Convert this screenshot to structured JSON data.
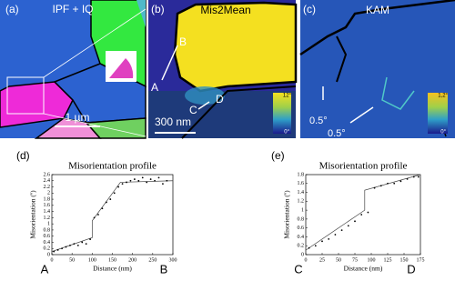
{
  "panels": [
    {
      "label": "(a)",
      "title": "IPF + IQ",
      "scale": "1 µm"
    },
    {
      "label": "(b)",
      "title": "Mis2Mean",
      "points": [
        "B",
        "A",
        "C",
        "D"
      ],
      "scale": "300 nm",
      "colorbar": [
        "12°",
        "0°"
      ]
    },
    {
      "label": "(c)",
      "title": "KAM",
      "annotations": [
        "0.5°",
        "0.5°"
      ],
      "colorbar": [
        "1,2°",
        "0°"
      ]
    }
  ],
  "chart_data": [
    {
      "type": "scatter",
      "panel": "(d)",
      "title": "Misorientation profile",
      "x_label": "Distance (nm)",
      "y_label": "Misorientation (º)",
      "ends": [
        "A",
        "B"
      ],
      "x": [
        5,
        15,
        25,
        35,
        45,
        55,
        65,
        75,
        85,
        95,
        105,
        115,
        125,
        135,
        145,
        155,
        165,
        175,
        185,
        195,
        205,
        215,
        225,
        235,
        245,
        255,
        265,
        275,
        285
      ],
      "values": [
        0.1,
        0.15,
        0.2,
        0.25,
        0.3,
        0.35,
        0.3,
        0.4,
        0.35,
        0.5,
        1.2,
        1.3,
        1.5,
        1.7,
        1.8,
        2.0,
        2.2,
        2.3,
        2.35,
        2.4,
        2.45,
        2.4,
        2.5,
        2.35,
        2.45,
        2.4,
        2.5,
        2.3,
        2.4
      ],
      "fit": {
        "x": [
          0,
          100,
          100,
          170,
          300
        ],
        "values": [
          0.1,
          0.55,
          1.1,
          2.35,
          2.4
        ]
      },
      "xlim": [
        0,
        300
      ],
      "xticks": [
        0,
        50,
        100,
        150,
        200,
        250,
        300
      ],
      "ylim": [
        0,
        2.6
      ],
      "yticks": [
        0,
        0.2,
        0.4,
        0.6,
        0.8,
        1,
        1.2,
        1.4,
        1.6,
        1.8,
        2,
        2.2,
        2.4,
        2.6
      ]
    },
    {
      "type": "scatter",
      "panel": "(e)",
      "title": "Misorientation profile",
      "x_label": "Distance (nm)",
      "y_label": "Misorientation (º)",
      "ends": [
        "C",
        "D"
      ],
      "x": [
        5,
        15,
        25,
        35,
        45,
        55,
        65,
        75,
        85,
        95,
        105,
        115,
        125,
        135,
        145,
        155,
        165,
        172
      ],
      "values": [
        0.15,
        0.2,
        0.3,
        0.35,
        0.45,
        0.55,
        0.65,
        0.75,
        0.9,
        0.95,
        1.5,
        1.55,
        1.6,
        1.6,
        1.65,
        1.7,
        1.75,
        1.75
      ],
      "fit": {
        "x": [
          0,
          90,
          90,
          175
        ],
        "values": [
          0.1,
          1.0,
          1.45,
          1.8
        ]
      },
      "xlim": [
        0,
        175
      ],
      "xticks": [
        0,
        25,
        50,
        75,
        100,
        125,
        150,
        175
      ],
      "ylim": [
        0,
        1.8
      ],
      "yticks": [
        0,
        0.2,
        0.4,
        0.6,
        0.8,
        1,
        1.2,
        1.4,
        1.6,
        1.8
      ]
    }
  ]
}
